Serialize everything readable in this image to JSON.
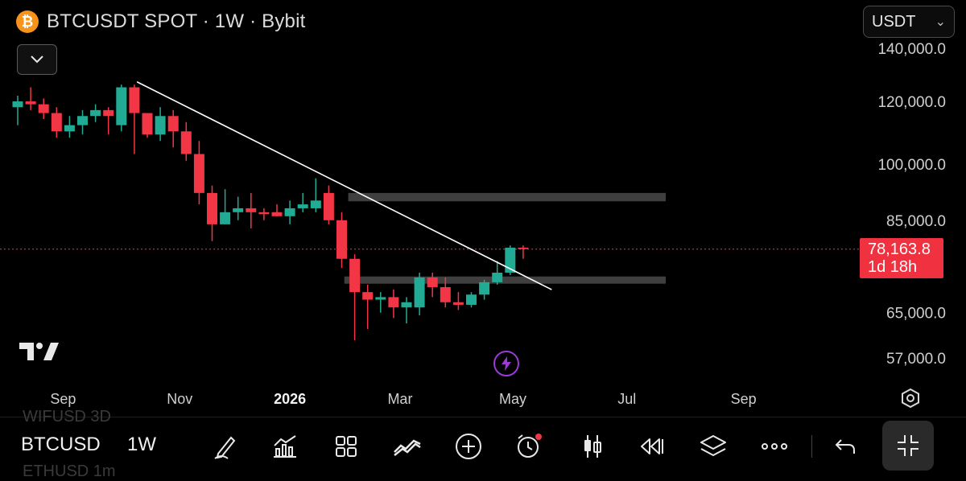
{
  "header": {
    "title": "BTCUSDT SPOT · 1W · Bybit",
    "logo_glyph": "₿",
    "currency": "USDT",
    "currency_chevron": "⌄"
  },
  "price_label": {
    "price": "78,163.8",
    "countdown": "1d 18h"
  },
  "toolbar": {
    "symbol": "BTCUSD",
    "timeframe": "1W",
    "ghost_above": "WIFUSD   3D",
    "ghost_below": "ETHUSD   1m"
  },
  "colors": {
    "up": "#22ab94",
    "down": "#f23645",
    "background": "#000000",
    "zone": "#4a4a4a",
    "price_line": "#f23645",
    "accent": "#9b3ad6"
  },
  "chart_data": {
    "type": "candlestick",
    "symbol": "BTCUSDT",
    "exchange": "Bybit",
    "timeframe": "1W",
    "y_scale": "log",
    "ylim": [
      52000,
      150000
    ],
    "y_ticks": [
      {
        "value": 140000,
        "label": "140,000.0"
      },
      {
        "value": 120000,
        "label": "120,000.0"
      },
      {
        "value": 100000,
        "label": "100,000.0"
      },
      {
        "value": 85000,
        "label": "85,000.0"
      },
      {
        "value": 65000,
        "label": "65,000.0"
      },
      {
        "value": 57000,
        "label": "57,000.0"
      }
    ],
    "x_ticks": [
      {
        "label": "Sep",
        "bar": 3.5,
        "bold": false
      },
      {
        "label": "Nov",
        "bar": 12.5,
        "bold": false
      },
      {
        "label": "2026",
        "bar": 21,
        "bold": true
      },
      {
        "label": "Mar",
        "bar": 29.5,
        "bold": false
      },
      {
        "label": "May",
        "bar": 38.2,
        "bold": false
      },
      {
        "label": "Jul",
        "bar": 47,
        "bold": false
      },
      {
        "label": "Sep",
        "bar": 56,
        "bold": false
      }
    ],
    "candles": [
      {
        "o": 118000,
        "h": 122000,
        "l": 112000,
        "c": 120000
      },
      {
        "o": 120000,
        "h": 125000,
        "l": 117000,
        "c": 119000
      },
      {
        "o": 119000,
        "h": 121000,
        "l": 114000,
        "c": 116000
      },
      {
        "o": 116000,
        "h": 118000,
        "l": 108000,
        "c": 110000
      },
      {
        "o": 110000,
        "h": 115000,
        "l": 108000,
        "c": 112000
      },
      {
        "o": 112000,
        "h": 117000,
        "l": 109000,
        "c": 115000
      },
      {
        "o": 115000,
        "h": 119000,
        "l": 113000,
        "c": 117000
      },
      {
        "o": 117000,
        "h": 118000,
        "l": 109000,
        "c": 115000
      },
      {
        "o": 112000,
        "h": 126000,
        "l": 110000,
        "c": 125000
      },
      {
        "o": 125000,
        "h": 126000,
        "l": 103000,
        "c": 116000
      },
      {
        "o": 116000,
        "h": 116000,
        "l": 108000,
        "c": 109000
      },
      {
        "o": 109000,
        "h": 118000,
        "l": 107000,
        "c": 115000
      },
      {
        "o": 115000,
        "h": 117000,
        "l": 105000,
        "c": 110000
      },
      {
        "o": 110000,
        "h": 113000,
        "l": 101000,
        "c": 103000
      },
      {
        "o": 103000,
        "h": 107000,
        "l": 89000,
        "c": 92000
      },
      {
        "o": 92000,
        "h": 94000,
        "l": 80000,
        "c": 84000
      },
      {
        "o": 84000,
        "h": 93000,
        "l": 84000,
        "c": 87000
      },
      {
        "o": 87000,
        "h": 91000,
        "l": 85000,
        "c": 88000
      },
      {
        "o": 88000,
        "h": 92000,
        "l": 83000,
        "c": 87000
      },
      {
        "o": 87000,
        "h": 88000,
        "l": 85000,
        "c": 86500
      },
      {
        "o": 87000,
        "h": 89000,
        "l": 86000,
        "c": 86000
      },
      {
        "o": 86000,
        "h": 90000,
        "l": 84000,
        "c": 88000
      },
      {
        "o": 88000,
        "h": 92000,
        "l": 87000,
        "c": 89000
      },
      {
        "o": 88000,
        "h": 96000,
        "l": 87000,
        "c": 90000
      },
      {
        "o": 92000,
        "h": 94000,
        "l": 84000,
        "c": 85000
      },
      {
        "o": 85000,
        "h": 87000,
        "l": 74000,
        "c": 76000
      },
      {
        "o": 76000,
        "h": 77000,
        "l": 60000,
        "c": 69000
      },
      {
        "o": 69000,
        "h": 70500,
        "l": 62000,
        "c": 67500
      },
      {
        "o": 67500,
        "h": 69000,
        "l": 65000,
        "c": 68000
      },
      {
        "o": 68000,
        "h": 69500,
        "l": 64000,
        "c": 66000
      },
      {
        "o": 66000,
        "h": 68000,
        "l": 63000,
        "c": 67000
      },
      {
        "o": 66000,
        "h": 73000,
        "l": 64500,
        "c": 72000
      },
      {
        "o": 72000,
        "h": 73000,
        "l": 68000,
        "c": 70000
      },
      {
        "o": 70000,
        "h": 72000,
        "l": 66000,
        "c": 67000
      },
      {
        "o": 67000,
        "h": 69000,
        "l": 65500,
        "c": 66500
      },
      {
        "o": 66500,
        "h": 69000,
        "l": 66000,
        "c": 68500
      },
      {
        "o": 68500,
        "h": 71500,
        "l": 67500,
        "c": 71000
      },
      {
        "o": 71000,
        "h": 75500,
        "l": 70500,
        "c": 73000
      },
      {
        "o": 73000,
        "h": 79000,
        "l": 72500,
        "c": 78500
      },
      {
        "o": 78500,
        "h": 79000,
        "l": 76000,
        "c": 78163.8
      }
    ],
    "current_price": 78163.8,
    "zones": [
      {
        "low": 89800,
        "high": 92000,
        "from_bar": 25.5
      },
      {
        "low": 71000,
        "high": 72200,
        "from_bar": 25.2
      }
    ],
    "trendline": {
      "from": {
        "bar": 9.2,
        "price": 127000
      },
      "to": {
        "bar": 41.2,
        "price": 69500
      }
    },
    "grid": false,
    "legend": "none"
  }
}
